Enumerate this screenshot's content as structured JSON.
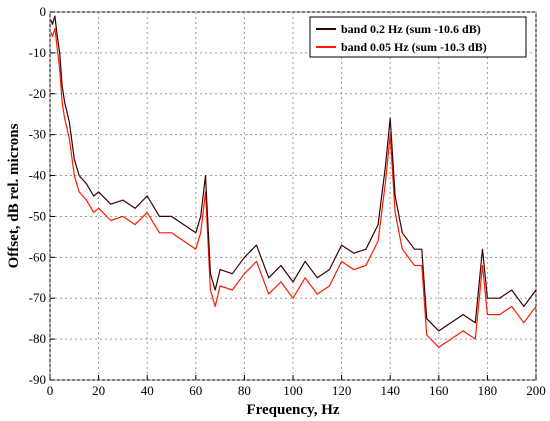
{
  "chart_data": {
    "type": "line",
    "xlabel": "Frequency, Hz",
    "ylabel": "Offset, dB rel. microns",
    "xlim": [
      0,
      200
    ],
    "ylim": [
      -90,
      0
    ],
    "xticks": [
      0,
      20,
      40,
      60,
      80,
      100,
      120,
      140,
      160,
      180,
      200
    ],
    "yticks": [
      0,
      -10,
      -20,
      -30,
      -40,
      -50,
      -60,
      -70,
      -80,
      -90
    ],
    "grid": true,
    "legend_position": "top-right",
    "colors": {
      "band_02": "#3a0000",
      "band_005": "#ff1a00"
    },
    "series": [
      {
        "name": "band 0.2 Hz (sum -10.6 dB)",
        "color": "#3a0000",
        "x": [
          0.5,
          1,
          2,
          3,
          4,
          5,
          6,
          8,
          10,
          12,
          15,
          18,
          20,
          25,
          30,
          35,
          40,
          45,
          50,
          55,
          60,
          62,
          64,
          66,
          68,
          70,
          75,
          80,
          85,
          90,
          95,
          100,
          105,
          110,
          115,
          120,
          125,
          130,
          135,
          138,
          140,
          142,
          145,
          150,
          153,
          155,
          160,
          165,
          170,
          175,
          178,
          180,
          185,
          190,
          195,
          200
        ],
        "y": [
          -2,
          -3,
          -1,
          -6,
          -10,
          -18,
          -22,
          -27,
          -36,
          -40,
          -42,
          -45,
          -44,
          -47,
          -46,
          -48,
          -45,
          -50,
          -50,
          -52,
          -54,
          -50,
          -40,
          -64,
          -68,
          -63,
          -64,
          -60,
          -57,
          -65,
          -62,
          -66,
          -61,
          -65,
          -63,
          -57,
          -59,
          -58,
          -52,
          -38,
          -26,
          -45,
          -54,
          -58,
          -58,
          -75,
          -78,
          -76,
          -74,
          -76,
          -58,
          -70,
          -70,
          -68,
          -72,
          -68
        ]
      },
      {
        "name": "band 0.05 Hz (sum -10.3 dB)",
        "color": "#ff1a00",
        "x": [
          0.5,
          1,
          2,
          3,
          4,
          5,
          6,
          8,
          10,
          12,
          15,
          18,
          20,
          25,
          30,
          35,
          40,
          45,
          50,
          55,
          60,
          62,
          64,
          66,
          68,
          70,
          75,
          80,
          85,
          90,
          95,
          100,
          105,
          110,
          115,
          120,
          125,
          130,
          135,
          138,
          140,
          142,
          145,
          150,
          153,
          155,
          160,
          165,
          170,
          175,
          178,
          180,
          185,
          190,
          195,
          200
        ],
        "y": [
          -5,
          -6,
          -4,
          -9,
          -14,
          -22,
          -26,
          -31,
          -40,
          -44,
          -46,
          -49,
          -48,
          -51,
          -50,
          -52,
          -49,
          -54,
          -54,
          -56,
          -58,
          -54,
          -44,
          -68,
          -72,
          -67,
          -68,
          -64,
          -61,
          -69,
          -66,
          -70,
          -65,
          -69,
          -67,
          -61,
          -63,
          -62,
          -56,
          -42,
          -30,
          -49,
          -58,
          -62,
          -62,
          -79,
          -82,
          -80,
          -78,
          -80,
          -62,
          -74,
          -74,
          -72,
          -76,
          -72
        ]
      }
    ]
  }
}
